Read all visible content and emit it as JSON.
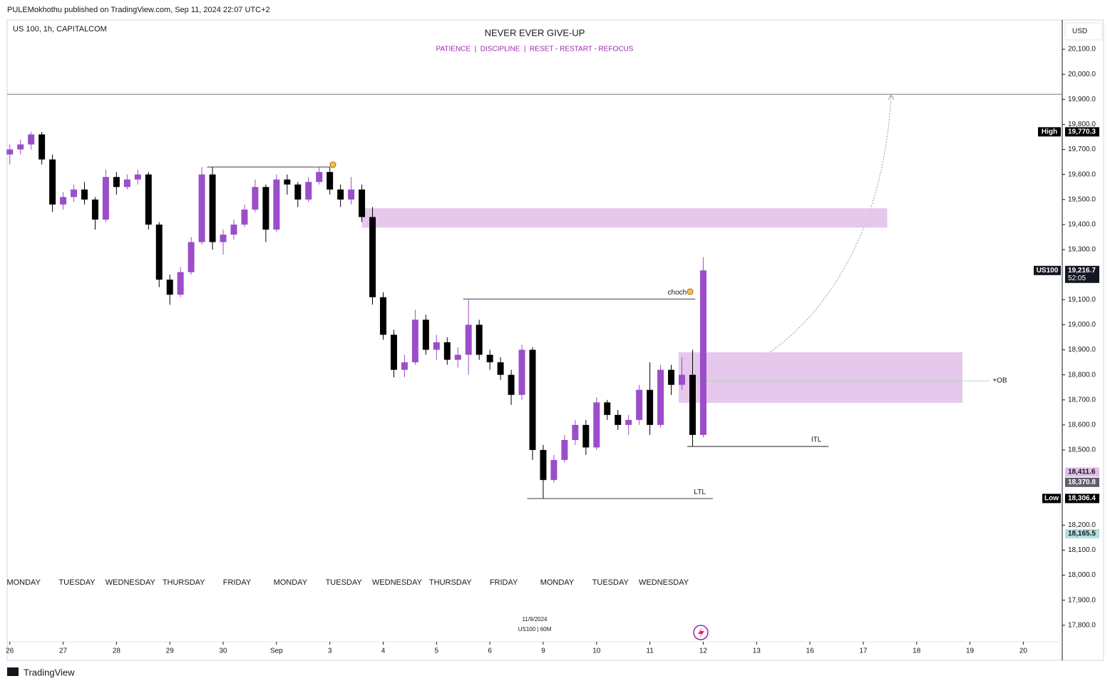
{
  "chart_data": {
    "type": "candlestick",
    "header": "PULEMokhothu published on TradingView.com, Sep 11, 2024 22:07 UTC+2",
    "symbol": "US 100, 1h, CAPITALCOM",
    "title": "NEVER EVER GIVE-UP",
    "subtitle": "PATIENCE  |  DISCIPLINE  |  RESET - RESTART - REFOCUS",
    "currency": "USD",
    "footer": "TradingView",
    "watermark": [
      "11/9/2024",
      "US100 | 60M"
    ],
    "up_color": "#9b4dca",
    "down_color": "#000000",
    "x": [
      0,
      0.2,
      0.4,
      0.6,
      0.8,
      1,
      1.2,
      1.4,
      1.6,
      1.8,
      2,
      2.2,
      2.4,
      2.6,
      2.8,
      3,
      3.2,
      3.4,
      3.6,
      3.8,
      4,
      4.2,
      4.4,
      4.6,
      4.8,
      5,
      5.2,
      5.4,
      5.6,
      5.8,
      6,
      6.2,
      6.4,
      6.6,
      6.8,
      7,
      7.2,
      7.4,
      7.6,
      7.8,
      8,
      8.2,
      8.4,
      8.6,
      8.8,
      9,
      9.2,
      9.4,
      9.6,
      9.8,
      10,
      10.2,
      10.4,
      10.6,
      10.8,
      11,
      11.2,
      11.4,
      11.6,
      11.8,
      12,
      12.2,
      12.4,
      12.6,
      12.8,
      13
    ],
    "open": [
      19680,
      19700,
      19720,
      19760,
      19660,
      19480,
      19510,
      19540,
      19500,
      19420,
      19590,
      19550,
      19580,
      19600,
      19400,
      19180,
      19120,
      19210,
      19330,
      19600,
      19330,
      19360,
      19400,
      19460,
      19550,
      19380,
      19580,
      19560,
      19500,
      19570,
      19610,
      19540,
      19500,
      19540,
      19430,
      19110,
      18960,
      18820,
      18850,
      19020,
      18900,
      18930,
      18860,
      18880,
      19000,
      18880,
      18850,
      18800,
      18720,
      18900,
      18500,
      18380,
      18460,
      18540,
      18600,
      18510,
      18690,
      18640,
      18600,
      18620,
      18740,
      18600,
      18820,
      18760,
      18800,
      18560
    ],
    "high": [
      19720,
      19740,
      19770,
      19770,
      19680,
      19530,
      19560,
      19570,
      19510,
      19620,
      19610,
      19600,
      19620,
      19610,
      19410,
      19200,
      19230,
      19350,
      19630,
      19630,
      19380,
      19420,
      19480,
      19580,
      19560,
      19600,
      19600,
      19570,
      19590,
      19630,
      19630,
      19560,
      19590,
      19560,
      19470,
      19130,
      18980,
      18880,
      19060,
      19040,
      18960,
      18950,
      18910,
      19100,
      19020,
      18900,
      18870,
      18820,
      18920,
      18910,
      18520,
      18480,
      18560,
      18620,
      18620,
      18710,
      18700,
      18660,
      18640,
      18760,
      18850,
      18840,
      18840,
      18870,
      18900,
      19270
    ],
    "low": [
      19640,
      19680,
      19700,
      19640,
      19450,
      19460,
      19490,
      19480,
      19380,
      19410,
      19520,
      19540,
      19560,
      19380,
      19150,
      19080,
      19110,
      19200,
      19320,
      19300,
      19280,
      19340,
      19390,
      19450,
      19330,
      19370,
      19520,
      19470,
      19490,
      19560,
      19520,
      19470,
      19480,
      19410,
      19080,
      18940,
      18790,
      18790,
      18840,
      18880,
      18860,
      18840,
      18830,
      18800,
      18860,
      18820,
      18780,
      18680,
      18700,
      18460,
      18306,
      18370,
      18450,
      18520,
      18480,
      18500,
      18620,
      18580,
      18560,
      18600,
      18560,
      18590,
      18720,
      18740,
      18515,
      18550
    ],
    "close": [
      19700,
      19720,
      19760,
      19660,
      19480,
      19510,
      19540,
      19500,
      19420,
      19590,
      19550,
      19580,
      19600,
      19400,
      19180,
      19120,
      19210,
      19330,
      19600,
      19330,
      19360,
      19400,
      19460,
      19550,
      19380,
      19580,
      19560,
      19500,
      19570,
      19610,
      19540,
      19500,
      19540,
      19430,
      19110,
      18960,
      18820,
      18850,
      19020,
      18900,
      18930,
      18860,
      18880,
      19000,
      18880,
      18850,
      18800,
      18720,
      18900,
      18500,
      18380,
      18460,
      18540,
      18600,
      18510,
      18690,
      18640,
      18600,
      18620,
      18740,
      18600,
      18820,
      18760,
      18800,
      18560,
      19217
    ],
    "xlim": [
      -0.05,
      19.73
    ],
    "ylim": [
      17660,
      20217
    ],
    "xticks": [
      {
        "value": 0,
        "label": "26"
      },
      {
        "value": 1,
        "label": "27"
      },
      {
        "value": 2,
        "label": "28"
      },
      {
        "value": 3,
        "label": "29"
      },
      {
        "value": 4,
        "label": "30"
      },
      {
        "value": 5,
        "label": "Sep"
      },
      {
        "value": 6,
        "label": "3"
      },
      {
        "value": 7,
        "label": "4"
      },
      {
        "value": 8,
        "label": "5"
      },
      {
        "value": 9,
        "label": "6"
      },
      {
        "value": 10,
        "label": "9"
      },
      {
        "value": 11,
        "label": "10"
      },
      {
        "value": 12,
        "label": "11"
      },
      {
        "value": 13,
        "label": "12"
      },
      {
        "value": 14,
        "label": "13"
      },
      {
        "value": 15,
        "label": "16"
      },
      {
        "value": 16,
        "label": "17"
      },
      {
        "value": 17,
        "label": "18"
      },
      {
        "value": 18,
        "label": "19"
      },
      {
        "value": 19,
        "label": "20"
      }
    ],
    "weekday_labels": {
      "x": [
        0.26,
        1.26,
        2.26,
        3.26,
        4.26,
        5.26,
        6.26,
        7.26,
        8.26,
        9.26,
        10.26,
        11.26,
        12.26
      ],
      "labels": [
        "MONDAY",
        "TUESDAY",
        "WEDNESDAY",
        "THURSDAY",
        "FRIDAY",
        "MONDAY",
        "TUESDAY",
        "WEDNESDAY",
        "THURSDAY",
        "FRIDAY",
        "MONDAY",
        "TUESDAY",
        "WEDNESDAY"
      ]
    },
    "yticks": [
      {
        "value": 17800,
        "label": "17,800.0"
      },
      {
        "value": 17900,
        "label": "17,900.0"
      },
      {
        "value": 18000,
        "label": "18,000.0"
      },
      {
        "value": 18100,
        "label": "18,100.0"
      },
      {
        "value": 18200,
        "label": "18,200.0"
      },
      {
        "value": 18500,
        "label": "18,500.0"
      },
      {
        "value": 18600,
        "label": "18,600.0"
      },
      {
        "value": 18700,
        "label": "18,700.0"
      },
      {
        "value": 18800,
        "label": "18,800.0"
      },
      {
        "value": 18900,
        "label": "18,900.0"
      },
      {
        "value": 19000,
        "label": "19,000.0"
      },
      {
        "value": 19100,
        "label": "19,100.0"
      },
      {
        "value": 19300,
        "label": "19,300.0"
      },
      {
        "value": 19400,
        "label": "19,400.0"
      },
      {
        "value": 19500,
        "label": "19,500.0"
      },
      {
        "value": 19600,
        "label": "19,600.0"
      },
      {
        "value": 19700,
        "label": "19,700.0"
      },
      {
        "value": 19800,
        "label": "19,800.0"
      },
      {
        "value": 19900,
        "label": "19,900.0"
      },
      {
        "value": 20000,
        "label": "20,000.0"
      },
      {
        "value": 20100,
        "label": "20,100.0"
      }
    ],
    "price_labels": [
      {
        "value": 19770.3,
        "label": "19,770.3",
        "tag": "High",
        "color": "#000000",
        "text_color": "#ffffff"
      },
      {
        "value": 19216.7,
        "label": "19,216.7",
        "tag": "US100",
        "sub": "52:05",
        "color": "#131722",
        "text_color": "#ffffff"
      },
      {
        "value": 18411.6,
        "label": "18,411.6",
        "color": "#e1bee7",
        "text_color": "#131722"
      },
      {
        "value": 18370.8,
        "label": "18,370.8",
        "color": "#5d606b",
        "text_color": "#ffffff"
      },
      {
        "value": 18306.4,
        "label": "18,306.4",
        "tag": "Low",
        "color": "#000000",
        "text_color": "#ffffff"
      },
      {
        "value": 18165.5,
        "label": "18,165.5",
        "color": "#b2dfdb",
        "text_color": "#131722"
      }
    ],
    "hlines": [
      {
        "value": 19920,
        "color": "#787b86"
      }
    ],
    "zones": [
      {
        "y": [
          19388,
          19465
        ],
        "x": [
          6.6,
          16.45
        ],
        "color": "#e1bee7"
      },
      {
        "y": [
          18688,
          18890
        ],
        "x": [
          12.54,
          17.86
        ],
        "color": "#e1bee7"
      }
    ],
    "lines": [
      {
        "y": 19630,
        "x": [
          3.7,
          6.0
        ],
        "color": "#000000"
      },
      {
        "y": 19103,
        "x": [
          8.5,
          12.85
        ],
        "label": "choch",
        "color": "#000000"
      },
      {
        "y": 18514,
        "x": [
          12.7,
          15.35
        ],
        "label": "ITL",
        "color": "#000000"
      },
      {
        "y": 18306,
        "x": [
          9.7,
          13.18
        ],
        "label": "LTL",
        "color": "#000000"
      },
      {
        "y": 18776,
        "x": [
          12.55,
          18.37
        ],
        "label": "+OB",
        "color": "#a5d6a7"
      }
    ]
  }
}
